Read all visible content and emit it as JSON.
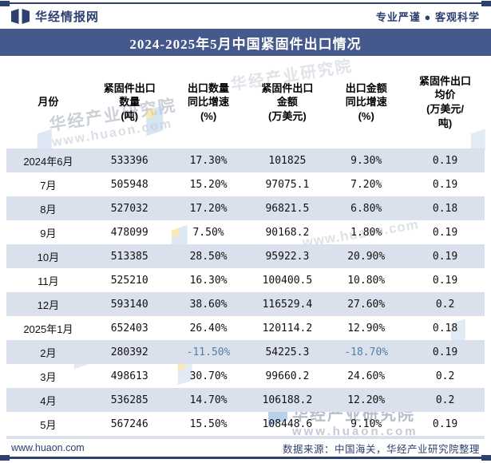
{
  "brand": {
    "name": "华经情报网",
    "slogan": "专业严谨 ● 客观科学"
  },
  "title": "2024-2025年5月中国紧固件出口情况",
  "table": {
    "headers": [
      "月份",
      "紧固件出口\n数量\n(吨)",
      "出口数量\n同比增速\n(%)",
      "紧固件出口\n金额\n(万美元)",
      "出口金额\n同比增速\n(%)",
      "紧固件出口\n均价\n(万美元/\n吨)"
    ],
    "rows": [
      {
        "cells": [
          "2024年6月",
          "533396",
          "17.30%",
          "101825",
          "9.30%",
          "0.19"
        ]
      },
      {
        "cells": [
          "7月",
          "505948",
          "15.20%",
          "97075.1",
          "7.20%",
          "0.19"
        ]
      },
      {
        "cells": [
          "8月",
          "527032",
          "17.20%",
          "96821.5",
          "6.80%",
          "0.18"
        ]
      },
      {
        "cells": [
          "9月",
          "478099",
          "7.50%",
          "90168.2",
          "1.80%",
          "0.19"
        ]
      },
      {
        "cells": [
          "10月",
          "513385",
          "28.50%",
          "95922.3",
          "20.90%",
          "0.19"
        ]
      },
      {
        "cells": [
          "11月",
          "525210",
          "16.30%",
          "100400.5",
          "10.80%",
          "0.19"
        ]
      },
      {
        "cells": [
          "12月",
          "593140",
          "38.60%",
          "116529.4",
          "27.60%",
          "0.2"
        ]
      },
      {
        "cells": [
          "2025年1月",
          "652403",
          "26.40%",
          "120114.2",
          "12.90%",
          "0.18"
        ]
      },
      {
        "cells": [
          "2月",
          "280392",
          "-11.50%",
          "54225.3",
          "-18.70%",
          "0.19"
        ]
      },
      {
        "cells": [
          "3月",
          "498613",
          "30.70%",
          "99660.2",
          "24.60%",
          "0.2"
        ]
      },
      {
        "cells": [
          "4月",
          "536285",
          "14.70%",
          "106188.2",
          "12.20%",
          "0.2"
        ]
      },
      {
        "cells": [
          "5月",
          "567246",
          "15.50%",
          "108448.6",
          "9.10%",
          "0.19"
        ]
      }
    ]
  },
  "footer": {
    "site": "www.huaon.com",
    "source": "数据来源：中国海关，华经产业研究院整理"
  },
  "watermark": {
    "org": "华经产业研究院",
    "url": "www.huaon.com"
  },
  "colors": {
    "navy": "#2c4170",
    "title_bar": "#46598c",
    "row_stripe": "#dbe1ec",
    "negative_value": "#4f81aa"
  },
  "chart_data": {
    "type": "table",
    "title": "2024-2025年5月中国紧固件出口情况",
    "columns": [
      "月份",
      "紧固件出口数量(吨)",
      "出口数量同比增速(%)",
      "紧固件出口金额(万美元)",
      "出口金额同比增速(%)",
      "紧固件出口均价(万美元/吨)"
    ],
    "rows": [
      [
        "2024年6月",
        533396,
        17.3,
        101825.0,
        9.3,
        0.19
      ],
      [
        "7月",
        505948,
        15.2,
        97075.1,
        7.2,
        0.19
      ],
      [
        "8月",
        527032,
        17.2,
        96821.5,
        6.8,
        0.18
      ],
      [
        "9月",
        478099,
        7.5,
        90168.2,
        1.8,
        0.19
      ],
      [
        "10月",
        513385,
        28.5,
        95922.3,
        20.9,
        0.19
      ],
      [
        "11月",
        525210,
        16.3,
        100400.5,
        10.8,
        0.19
      ],
      [
        "12月",
        593140,
        38.6,
        116529.4,
        27.6,
        0.2
      ],
      [
        "2025年1月",
        652403,
        26.4,
        120114.2,
        12.9,
        0.18
      ],
      [
        "2月",
        280392,
        -11.5,
        54225.3,
        -18.7,
        0.19
      ],
      [
        "3月",
        498613,
        30.7,
        99660.2,
        24.6,
        0.2
      ],
      [
        "4月",
        536285,
        14.7,
        106188.2,
        12.2,
        0.2
      ],
      [
        "5月",
        567246,
        15.5,
        108448.6,
        9.1,
        0.19
      ]
    ],
    "notes": "negative growth values rendered in steel blue (#4f81aa); source: 中国海关, 华经产业研究院整理"
  }
}
